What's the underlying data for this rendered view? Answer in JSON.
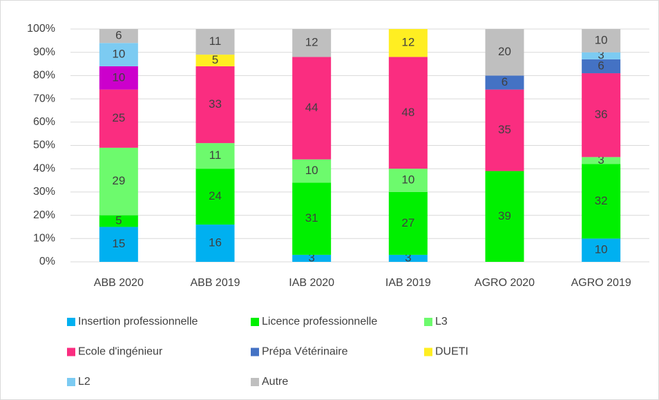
{
  "chart_data": {
    "type": "stacked_bar_percent",
    "categories": [
      "ABB 2020",
      "ABB 2019",
      "IAB 2020",
      "IAB 2019",
      "AGRO 2020",
      "AGRO 2019"
    ],
    "series": [
      {
        "name": "Insertion professionnelle",
        "color": "#00b0f0",
        "values": [
          15,
          16,
          3,
          3,
          null,
          10
        ]
      },
      {
        "name": "Licence professionnelle",
        "color": "#00f000",
        "values": [
          5,
          24,
          31,
          27,
          39,
          32
        ]
      },
      {
        "name": "L3",
        "color": "#6dfa6d",
        "values": [
          29,
          11,
          10,
          10,
          null,
          3
        ]
      },
      {
        "name": "Ecole d'ingénieur",
        "color": "#fa2d80",
        "values": [
          25,
          33,
          44,
          48,
          35,
          36
        ]
      },
      {
        "name": "Prépa Vétérinaire",
        "color": "#4472c4",
        "values": [
          10,
          null,
          null,
          null,
          6,
          6
        ],
        "point_colors": [
          "#cc00cc",
          null,
          null,
          null,
          null,
          null
        ]
      },
      {
        "name": "DUETI",
        "color": "#ffee22",
        "values": [
          null,
          5,
          null,
          12,
          null,
          null
        ]
      },
      {
        "name": "L2",
        "color": "#7ccbf2",
        "values": [
          10,
          null,
          null,
          null,
          null,
          3
        ]
      },
      {
        "name": "Autre",
        "color": "#bfbfbf",
        "values": [
          6,
          11,
          12,
          null,
          20,
          10
        ]
      }
    ],
    "ylim": [
      0,
      100
    ],
    "yticks": [
      {
        "value": 0,
        "label": "0%"
      },
      {
        "value": 10,
        "label": "10%"
      },
      {
        "value": 20,
        "label": "20%"
      },
      {
        "value": 30,
        "label": "30%"
      },
      {
        "value": 40,
        "label": "40%"
      },
      {
        "value": 50,
        "label": "50%"
      },
      {
        "value": 60,
        "label": "60%"
      },
      {
        "value": 70,
        "label": "70%"
      },
      {
        "value": 80,
        "label": "80%"
      },
      {
        "value": 90,
        "label": "90%"
      },
      {
        "value": 100,
        "label": "100%"
      }
    ],
    "grid": true,
    "legend": "bottom"
  }
}
